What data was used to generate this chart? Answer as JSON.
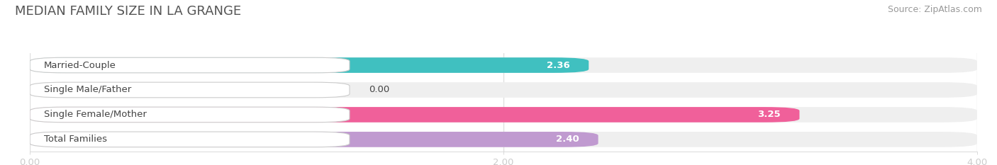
{
  "title": "MEDIAN FAMILY SIZE IN LA GRANGE",
  "source": "Source: ZipAtlas.com",
  "categories": [
    "Married-Couple",
    "Single Male/Father",
    "Single Female/Mother",
    "Total Families"
  ],
  "values": [
    2.36,
    0.0,
    3.25,
    2.4
  ],
  "bar_colors": [
    "#40c0c0",
    "#a8b8e8",
    "#f0609a",
    "#c09ad0"
  ],
  "bar_bg_color": "#efefef",
  "xlim": [
    0,
    4.0
  ],
  "xticks": [
    0.0,
    2.0,
    4.0
  ],
  "xtick_labels": [
    "0.00",
    "2.00",
    "4.00"
  ],
  "background_color": "#ffffff",
  "label_fontsize": 9.5,
  "value_fontsize": 9.5,
  "title_fontsize": 13,
  "source_fontsize": 9
}
